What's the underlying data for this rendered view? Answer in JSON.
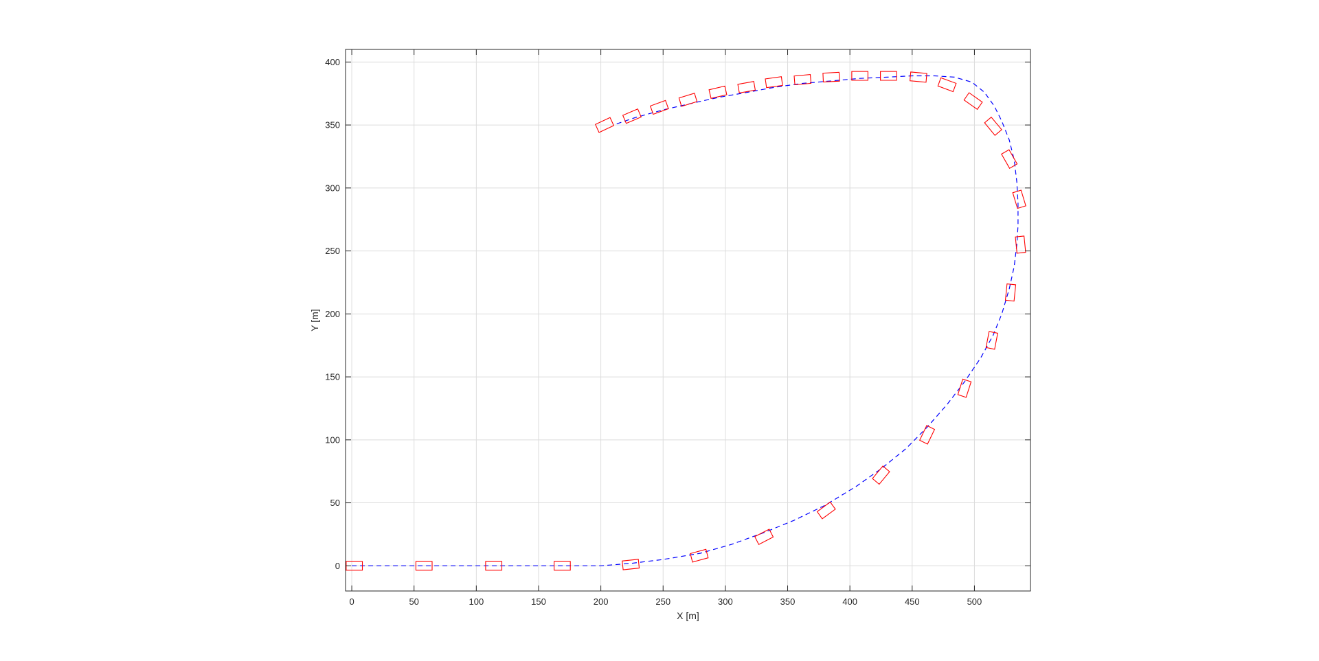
{
  "chart_data": {
    "type": "line",
    "title": "",
    "xlabel": "X [m]",
    "ylabel": "Y [m]",
    "xlim": [
      -5,
      545
    ],
    "ylim": [
      -20,
      410
    ],
    "xticks": [
      0,
      50,
      100,
      150,
      200,
      250,
      300,
      350,
      400,
      450,
      500
    ],
    "yticks": [
      0,
      50,
      100,
      150,
      200,
      250,
      300,
      350,
      400
    ],
    "grid": true,
    "legend": "none",
    "series": [
      {
        "kind": "path",
        "style": "dashed",
        "color": "#0000ff",
        "x": [
          0,
          55,
          112,
          168,
          200,
          225,
          250,
          280,
          305,
          330,
          355,
          380,
          405,
          425,
          445,
          462,
          478,
          492,
          505,
          515,
          522,
          528,
          532,
          534,
          535,
          535,
          534,
          532,
          528,
          522,
          516,
          508,
          498,
          484,
          468,
          450,
          430,
          408,
          385,
          362,
          340,
          318,
          295,
          272,
          250,
          228,
          210
        ],
        "y": [
          0,
          0,
          0,
          0,
          0,
          2,
          5,
          10,
          17,
          26,
          36,
          48,
          63,
          77,
          93,
          110,
          128,
          146,
          165,
          183,
          200,
          220,
          238,
          255,
          270,
          288,
          305,
          322,
          338,
          353,
          365,
          376,
          384,
          388,
          389,
          389,
          388,
          387,
          385,
          383,
          380,
          376,
          372,
          367,
          362,
          356,
          350
        ]
      },
      {
        "kind": "vehicle-footprints",
        "color": "#ff0000",
        "length": 13,
        "width": 7,
        "poses": [
          {
            "x": 2,
            "y": 0,
            "heading": 0
          },
          {
            "x": 58,
            "y": 0,
            "heading": 0
          },
          {
            "x": 114,
            "y": 0,
            "heading": 0
          },
          {
            "x": 169,
            "y": 0,
            "heading": 0
          },
          {
            "x": 224,
            "y": 1,
            "heading": 6
          },
          {
            "x": 279,
            "y": 8,
            "heading": 15
          },
          {
            "x": 331,
            "y": 23,
            "heading": 27
          },
          {
            "x": 381,
            "y": 44,
            "heading": 36
          },
          {
            "x": 425,
            "y": 72,
            "heading": 50
          },
          {
            "x": 462,
            "y": 104,
            "heading": 64
          },
          {
            "x": 492,
            "y": 141,
            "heading": 72
          },
          {
            "x": 514,
            "y": 179,
            "heading": 79
          },
          {
            "x": 529,
            "y": 217,
            "heading": 84
          },
          {
            "x": 537,
            "y": 255,
            "heading": 96
          },
          {
            "x": 536,
            "y": 291,
            "heading": 107
          },
          {
            "x": 528,
            "y": 323,
            "heading": 120
          },
          {
            "x": 515,
            "y": 349,
            "heading": 130
          },
          {
            "x": 499,
            "y": 369,
            "heading": 145
          },
          {
            "x": 478,
            "y": 382,
            "heading": 160
          },
          {
            "x": 455,
            "y": 388,
            "heading": 175
          },
          {
            "x": 431,
            "y": 389,
            "heading": 180
          },
          {
            "x": 408,
            "y": 389,
            "heading": 180
          },
          {
            "x": 385,
            "y": 388,
            "heading": 183
          },
          {
            "x": 362,
            "y": 386,
            "heading": 185
          },
          {
            "x": 339,
            "y": 384,
            "heading": 188
          },
          {
            "x": 317,
            "y": 380,
            "heading": 190
          },
          {
            "x": 294,
            "y": 376,
            "heading": 193
          },
          {
            "x": 270,
            "y": 370,
            "heading": 197
          },
          {
            "x": 247,
            "y": 364,
            "heading": 200
          },
          {
            "x": 225,
            "y": 357,
            "heading": 203
          },
          {
            "x": 203,
            "y": 350,
            "heading": 205
          }
        ]
      }
    ]
  }
}
